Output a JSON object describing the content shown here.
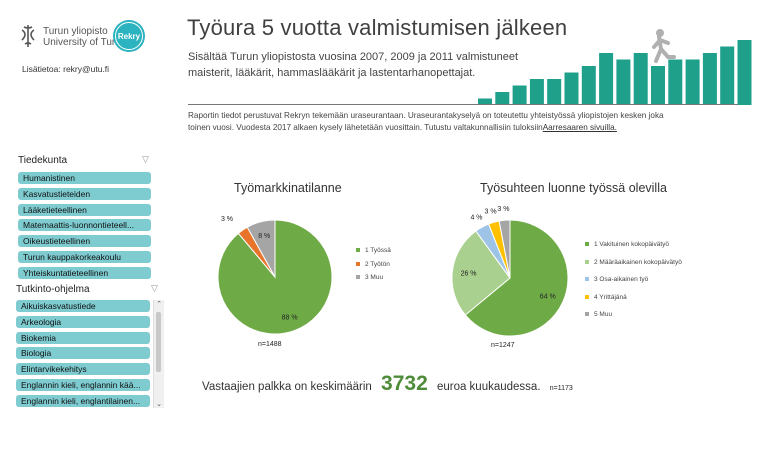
{
  "logo": {
    "university_line1": "Turun yliopisto",
    "university_line2": "University of Turku",
    "brand": "Rekry"
  },
  "contact": "Lisätietoa: rekry@utu.fi",
  "header": {
    "title": "Työura 5 vuotta valmistumisen jälkeen",
    "subtitle_line1": "Sisältää Turun yliopistosta vuosina 2007, 2009 ja 2011 valmistuneet",
    "subtitle_line2": "maisterit, lääkärit, hammaslääkärit ja lastentarhanopettajat.",
    "bar_values": [
      1,
      2,
      3,
      4,
      4,
      5,
      6,
      8,
      7,
      8,
      6,
      7,
      7,
      8,
      9,
      10
    ]
  },
  "info": {
    "line1": "Raportin tiedot perustuvat Rekryn tekemään uraseurantaan. Uraseurantakyselyä on toteutettu yhteistyössä yliopistojen kesken joka",
    "line2": "toinen vuosi. Vuodesta 2017 alkaen kysely lähetetään vuosittain. Tutustu valtakunnallisiin tuloksiin",
    "link": "Aarresaaren sivuilla."
  },
  "slicer_faculty": {
    "title": "Tiedekunta",
    "items": [
      "Humanistinen",
      "Kasvatustieteiden",
      "Lääketieteellinen",
      "Matemaattis-luonnontieteell...",
      "Oikeustieteellinen",
      "Turun kauppakorkeakoulu",
      "Yhteiskuntatieteellinen"
    ]
  },
  "slicer_degree": {
    "title": "Tutkinto-ohjelma",
    "items": [
      "Aikuiskasvatustiede",
      "Arkeologia",
      "Biokemia",
      "Biologia",
      "Elintarvikekehitys",
      "Englannin kieli, englannin kää...",
      "Englannin kieli, englantilainen..."
    ]
  },
  "chart_data": [
    {
      "type": "pie",
      "title": "Työmarkkinatilanne",
      "labels": [
        "1 Työssä",
        "2 Työtön",
        "3 Muu"
      ],
      "values": [
        88,
        3,
        8
      ],
      "value_labels": [
        "88 %",
        "3 %",
        "8 %"
      ],
      "colors": [
        "#6eab46",
        "#e8742c",
        "#a5a5a5"
      ],
      "n": "n=1488"
    },
    {
      "type": "pie",
      "title": "Työsuhteen luonne työssä olevilla",
      "labels": [
        "1 Vakituinen kokopäivätyö",
        "2 Määräaikainen kokopäivätyö",
        "3 Osa-aikainen työ",
        "4 Yrittäjänä",
        "5 Muu"
      ],
      "values": [
        64,
        26,
        4,
        3,
        3
      ],
      "value_labels": [
        "64 %",
        "26 %",
        "4 %",
        "3 %",
        "3 %"
      ],
      "colors": [
        "#6eab46",
        "#a9d08e",
        "#9dc3e6",
        "#ffc000",
        "#a5a5a5"
      ],
      "n": "n=1247"
    }
  ],
  "salary": {
    "prefix": "Vastaajien palkka on keskimäärin",
    "value": "3732",
    "suffix": "euroa kuukaudessa.",
    "n": "n=1173"
  },
  "colors": {
    "teal": "#1fa08a",
    "slicer": "#7ecbd0",
    "green": "#4e8c3a"
  }
}
